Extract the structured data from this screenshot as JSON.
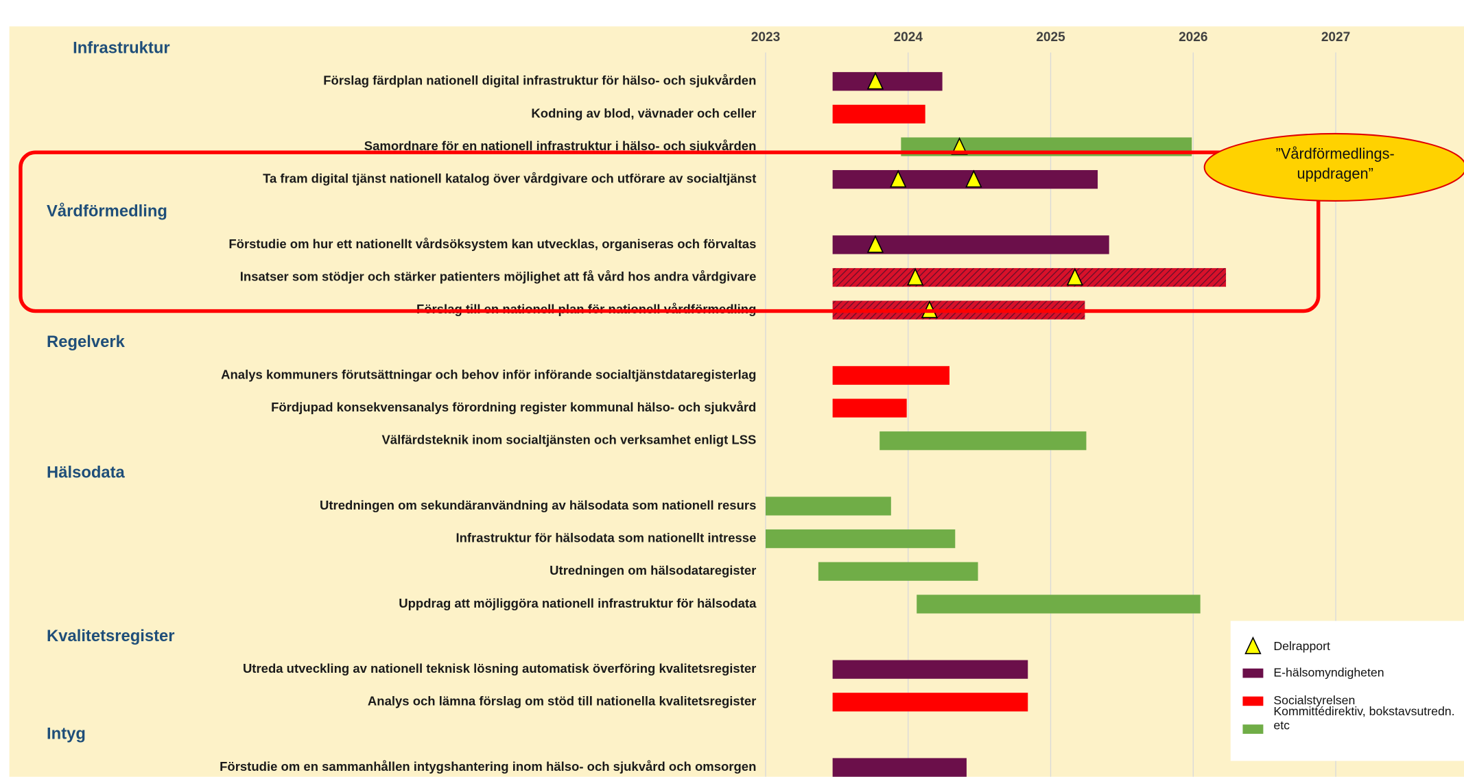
{
  "chart_data": {
    "type": "gantt",
    "xlim": [
      2023,
      2027.9
    ],
    "xticks": [
      2023,
      2024,
      2025,
      2026,
      2027
    ],
    "grid": true,
    "milestone_label": "Delrapport",
    "milestone_color": "#ffff00",
    "annotation": "”Vårdförmedlings-uppdragen”",
    "series": [
      {
        "name": "E-hälsomyndigheten",
        "color": "#6b0f4a"
      },
      {
        "name": "Socialstyrelsen",
        "color": "#ff0000"
      },
      {
        "name": "Kommittédirektiv, bokstavsutredn. etc",
        "color": "#70ad47"
      }
    ],
    "sections": [
      {
        "name": "Infrastruktur",
        "tasks": [
          {
            "label": "Förslag färdplan nationell digital infrastruktur för hälso- och sjukvården",
            "series": 0,
            "start": 2023.47,
            "end": 2024.24,
            "milestones": [
              2023.77
            ]
          },
          {
            "label": "Kodning av blod, vävnader och celler",
            "series": 1,
            "start": 2023.47,
            "end": 2024.12,
            "milestones": []
          },
          {
            "label": "Samordnare för en nationell infrastruktur i hälso- och sjukvården",
            "series": 2,
            "start": 2023.95,
            "end": 2025.99,
            "milestones": [
              2024.36
            ]
          },
          {
            "label": "Ta fram digital tjänst nationell katalog över vårdgivare och utförare av socialtjänst",
            "series": 0,
            "start": 2023.47,
            "end": 2025.33,
            "milestones": [
              2023.93,
              2024.46
            ]
          }
        ]
      },
      {
        "name": "Vårdförmedling",
        "tasks": [
          {
            "label": "Förstudie om hur ett nationellt vårdsöksystem kan utvecklas, organiseras och förvaltas",
            "series": 0,
            "start": 2023.47,
            "end": 2025.41,
            "milestones": [
              2023.77
            ]
          },
          {
            "label": "Insatser som stödjer och stärker patienters möjlighet att få vård hos andra vårdgivare",
            "series": 1,
            "hatched": true,
            "start": 2023.47,
            "end": 2026.23,
            "milestones": [
              2024.05,
              2025.17
            ]
          },
          {
            "label": "Förslag till en nationell plan för nationell vårdförmedling",
            "series": 1,
            "hatched": true,
            "start": 2023.47,
            "end": 2025.24,
            "milestones": [
              2024.15
            ]
          }
        ]
      },
      {
        "name": "Regelverk",
        "tasks": [
          {
            "label": "Analys kommuners förutsättningar och behov inför införande socialtjänstdataregisterlag",
            "series": 1,
            "start": 2023.47,
            "end": 2024.29,
            "milestones": []
          },
          {
            "label": "Fördjupad konsekvensanalys förordning register kommunal hälso- och sjukvård",
            "series": 1,
            "start": 2023.47,
            "end": 2023.99,
            "milestones": []
          },
          {
            "label": "Välfärdsteknik inom socialtjänsten och verksamhet enligt LSS",
            "series": 2,
            "start": 2023.8,
            "end": 2025.25,
            "milestones": []
          }
        ]
      },
      {
        "name": "Hälsodata",
        "tasks": [
          {
            "label": "Utredningen om sekundäranvändning av hälsodata som nationell resurs",
            "series": 2,
            "start": 2023.0,
            "end": 2023.88,
            "milestones": []
          },
          {
            "label": "Infrastruktur för hälsodata som nationellt intresse",
            "series": 2,
            "start": 2023.0,
            "end": 2024.33,
            "milestones": []
          },
          {
            "label": "Utredningen om hälsodataregister",
            "series": 2,
            "start": 2023.37,
            "end": 2024.49,
            "milestones": []
          },
          {
            "label": "Uppdrag att möjliggöra nationell infrastruktur för hälsodata",
            "series": 2,
            "start": 2024.06,
            "end": 2026.05,
            "milestones": []
          }
        ]
      },
      {
        "name": "Kvalitetsregister",
        "tasks": [
          {
            "label": "Utreda utveckling av nationell teknisk lösning automatisk överföring kvalitetsregister",
            "series": 0,
            "start": 2023.47,
            "end": 2024.84,
            "milestones": []
          },
          {
            "label": "Analys och lämna förslag om stöd till nationella kvalitetsregister",
            "series": 1,
            "start": 2023.47,
            "end": 2024.84,
            "milestones": []
          }
        ]
      },
      {
        "name": "Intyg",
        "tasks": [
          {
            "label": "Förstudie om en sammanhållen intygshantering inom hälso- och sjukvård och omsorgen",
            "series": 0,
            "start": 2023.47,
            "end": 2024.41,
            "milestones": []
          }
        ]
      }
    ]
  }
}
